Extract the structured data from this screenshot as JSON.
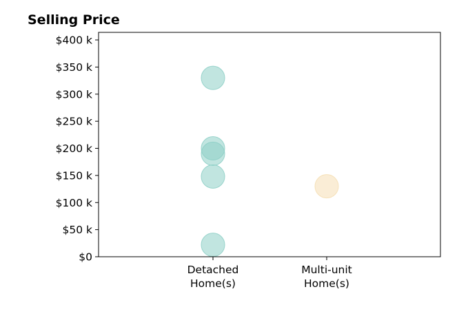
{
  "chart_data": {
    "type": "scatter",
    "title": "Selling Price",
    "xlabel": "",
    "ylabel": "",
    "categories": [
      [
        "Detached",
        "Home(s)"
      ],
      [
        "Multi-unit",
        "Home(s)"
      ]
    ],
    "ylim": [
      0,
      414000
    ],
    "yticks": [
      0,
      50000,
      100000,
      150000,
      200000,
      250000,
      300000,
      350000,
      400000
    ],
    "ytick_labels": [
      "$0",
      "$50 k",
      "$100 k",
      "$150 k",
      "$200 k",
      "$250 k",
      "$300 k",
      "$350 k",
      "$400 k"
    ],
    "grid": false,
    "series": [
      {
        "category_index": 0,
        "color": "#8ecfc7",
        "values": [
          330000,
          200000,
          190000,
          148000,
          22000
        ]
      },
      {
        "category_index": 1,
        "color": "#f5dfb4",
        "values": [
          130000
        ]
      }
    ]
  }
}
